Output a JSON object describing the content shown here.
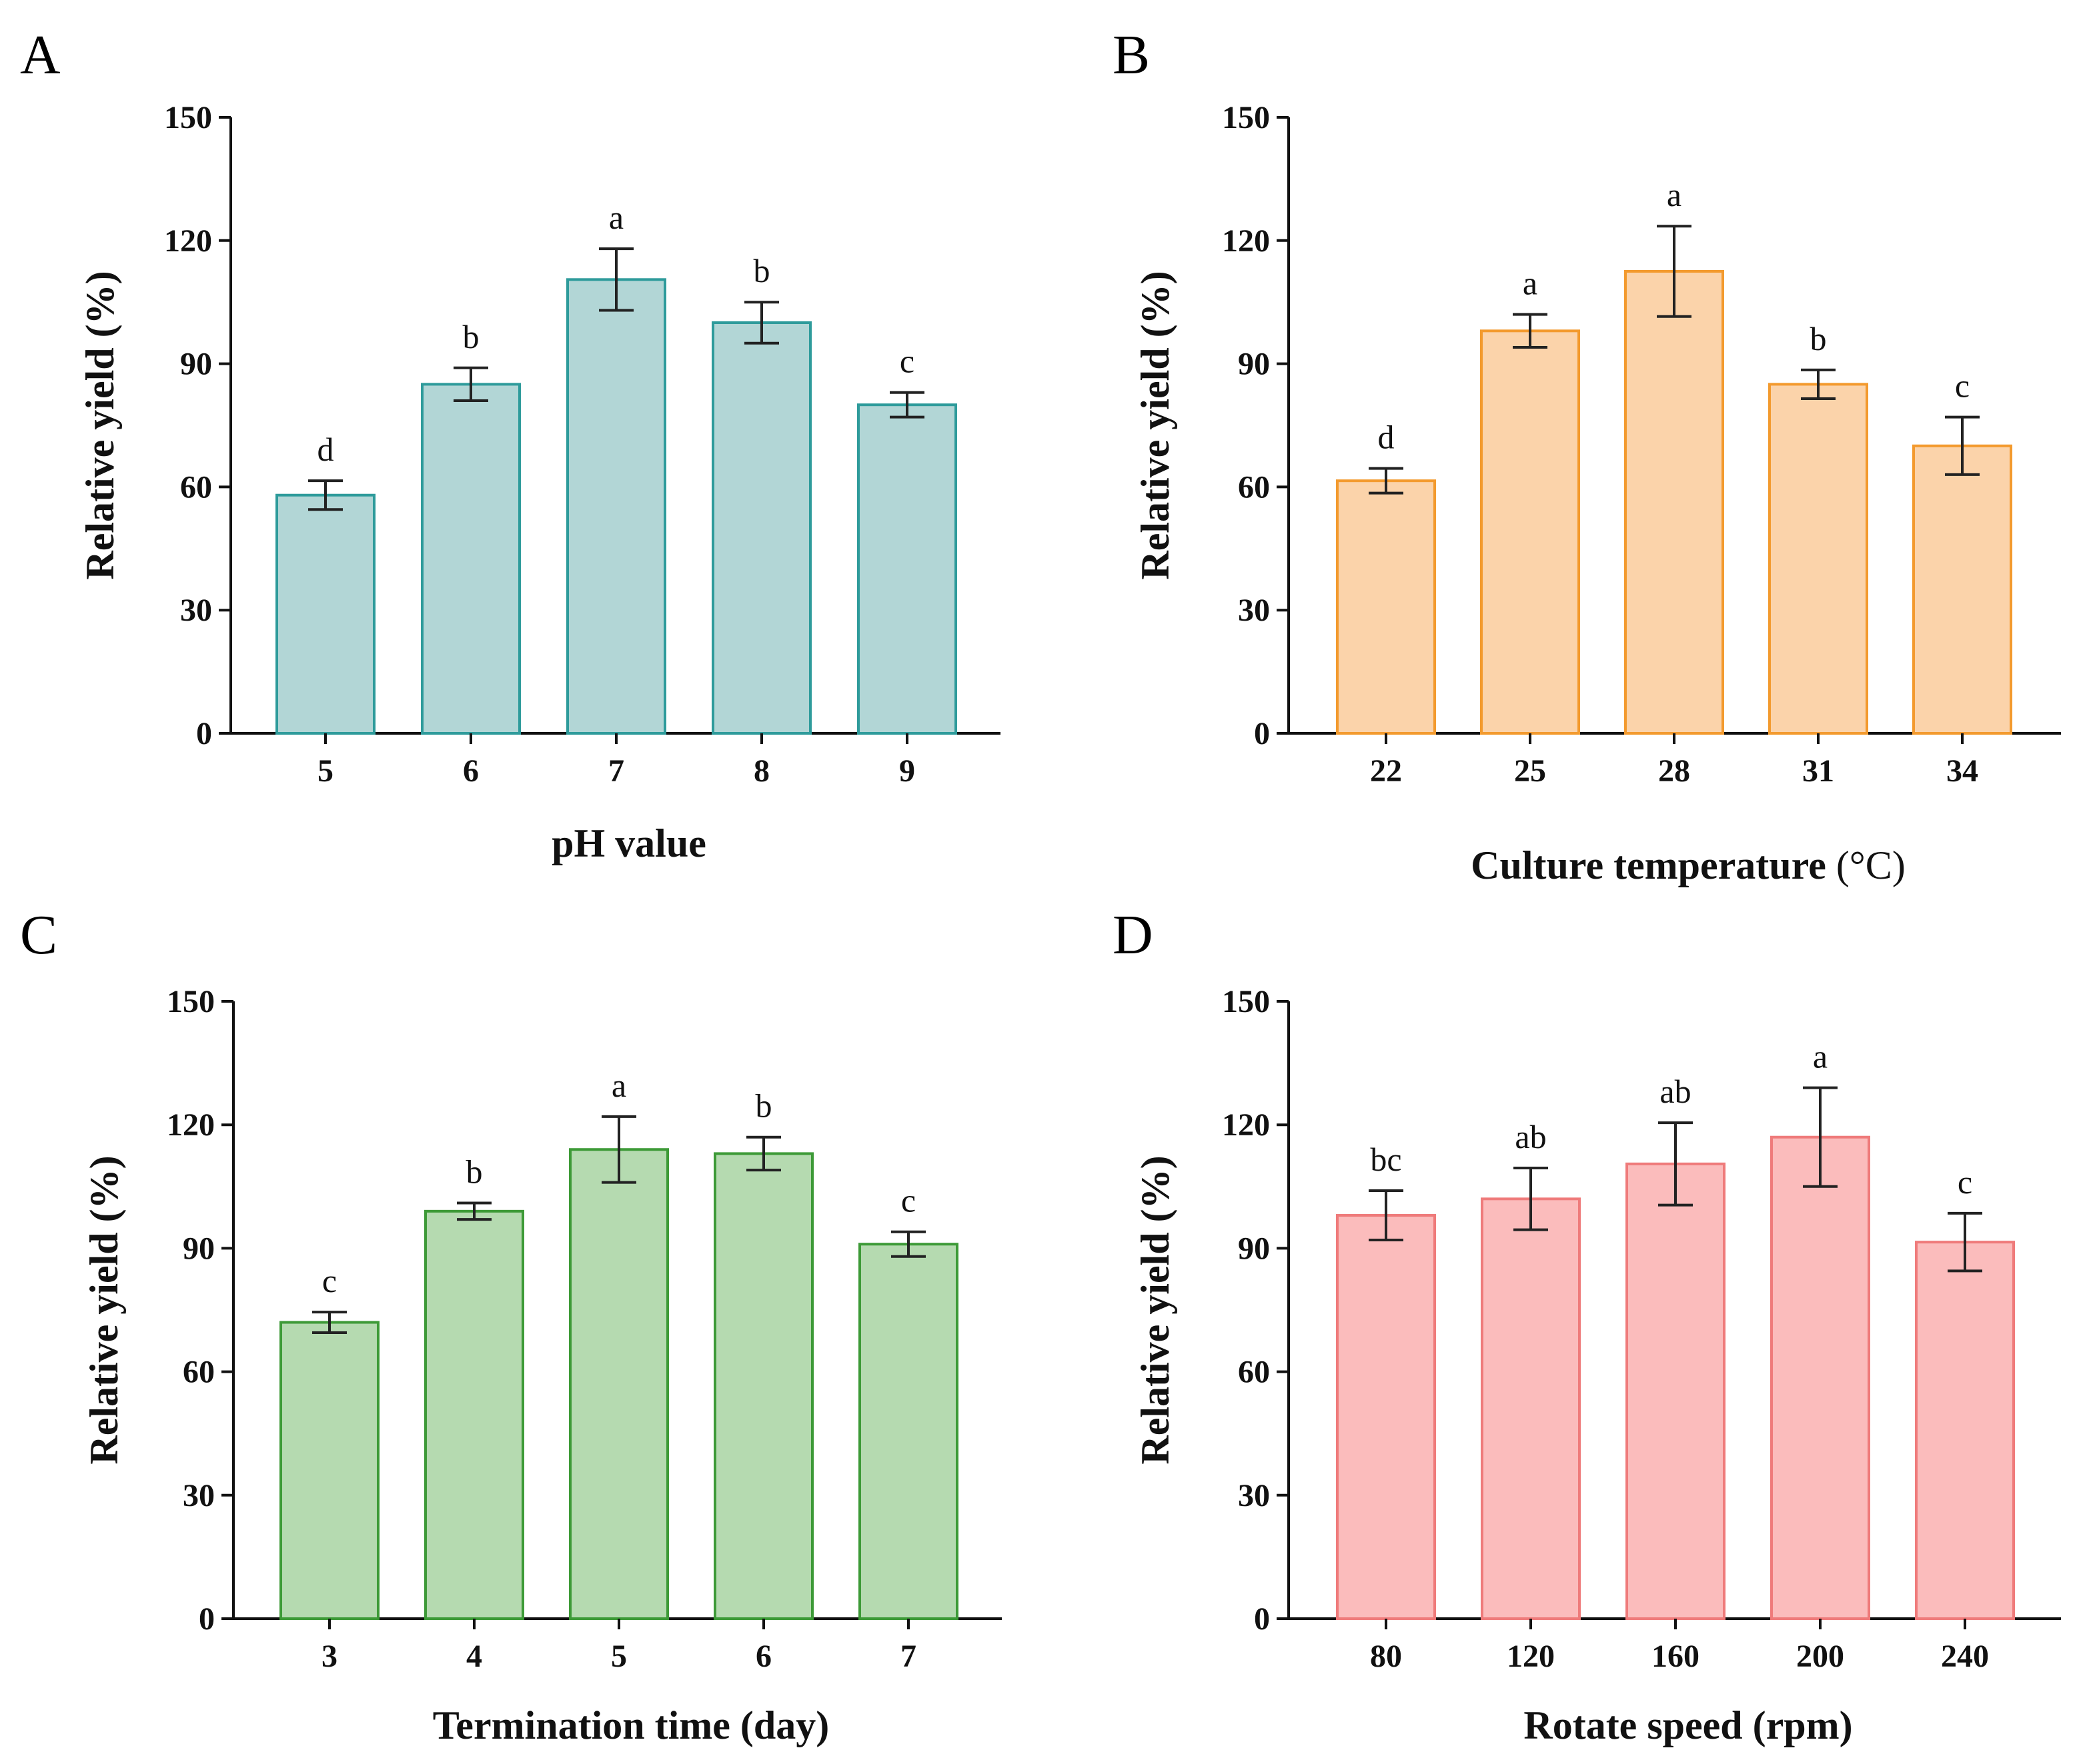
{
  "figure": {
    "panels": [
      "A",
      "B",
      "C",
      "D"
    ]
  },
  "chart_data": [
    {
      "panel": "A",
      "type": "bar",
      "xlabel": "pH value",
      "ylabel": "Relative yield (%)",
      "ylim": [
        0,
        150
      ],
      "yticks": [
        0,
        30,
        60,
        90,
        120,
        150
      ],
      "categories": [
        "5",
        "6",
        "7",
        "8",
        "9"
      ],
      "values": [
        58,
        85,
        110.5,
        100,
        80
      ],
      "errors": [
        3.5,
        4,
        7.5,
        5,
        3
      ],
      "significance": [
        "d",
        "b",
        "a",
        "b",
        "c"
      ],
      "fill": "#b2d6d6",
      "stroke": "#2e9b9b"
    },
    {
      "panel": "B",
      "type": "bar",
      "xlabel_main": "Culture temperature",
      "xlabel_unit": " (°C)",
      "ylabel": "Relative yield (%)",
      "ylim": [
        0,
        150
      ],
      "yticks": [
        0,
        30,
        60,
        90,
        120,
        150
      ],
      "categories": [
        "22",
        "25",
        "28",
        "31",
        "34"
      ],
      "values": [
        61.5,
        98,
        112.5,
        85,
        70
      ],
      "errors": [
        3,
        4,
        11,
        3.5,
        7
      ],
      "significance": [
        "d",
        "a",
        "a",
        "b",
        "c"
      ],
      "fill": "#fbd3aa",
      "stroke": "#f39a2e"
    },
    {
      "panel": "C",
      "type": "bar",
      "xlabel": "Termination time (day)",
      "ylabel": "Relative yield (%)",
      "ylim": [
        0,
        150
      ],
      "yticks": [
        0,
        30,
        60,
        90,
        120,
        150
      ],
      "categories": [
        "3",
        "4",
        "5",
        "6",
        "7"
      ],
      "values": [
        72,
        99,
        114,
        113,
        91
      ],
      "errors": [
        2.5,
        2,
        8,
        4,
        3
      ],
      "significance": [
        "c",
        "b",
        "a",
        "b",
        "c"
      ],
      "fill": "#b5dab0",
      "stroke": "#3d9a37"
    },
    {
      "panel": "D",
      "type": "bar",
      "xlabel": "Rotate speed (rpm)",
      "ylabel": "Relative yield (%)",
      "ylim": [
        0,
        150
      ],
      "yticks": [
        0,
        30,
        60,
        90,
        120,
        150
      ],
      "categories": [
        "80",
        "120",
        "160",
        "200",
        "240"
      ],
      "values": [
        98,
        102,
        110.5,
        117,
        91.5
      ],
      "errors": [
        6,
        7.5,
        10,
        12,
        7
      ],
      "significance": [
        "bc",
        "ab",
        "ab",
        "a",
        "c"
      ],
      "fill": "#fbbcbc",
      "stroke": "#ef7b7b"
    }
  ]
}
